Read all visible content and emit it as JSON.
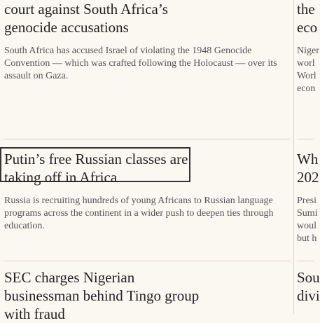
{
  "stories": [
    {
      "headline_line1": "court against South Africa’s",
      "headline_line2": "genocide accusations",
      "summary": "South Africa has accused Israel of violating the 1948 Genocide Convention — which was crafted following the Holocaust — over its assault on Gaza."
    },
    {
      "headline_line1": "Putin’s free Russian classes are",
      "headline_line2": "taking off in Africa",
      "summary": "Russia is recruiting hundreds of young Africans to Russian language programs across the continent in a wider push to deepen ties through education."
    },
    {
      "headline_line1": "SEC charges Nigerian",
      "headline_line2": "businessman behind Tingo group",
      "headline_line3": "with fraud"
    }
  ],
  "side_column": {
    "story1_head": "the",
    "story1_head2": "eco",
    "story1_sum": [
      "Niger",
      "worl",
      "Worl",
      "econ"
    ],
    "story2_head": "Wh",
    "story2_head2": "202",
    "story2_sum": [
      "Presi",
      "Sumi",
      "woul",
      "but h"
    ],
    "story3_head": "Sou",
    "story3_head2": "divi"
  }
}
